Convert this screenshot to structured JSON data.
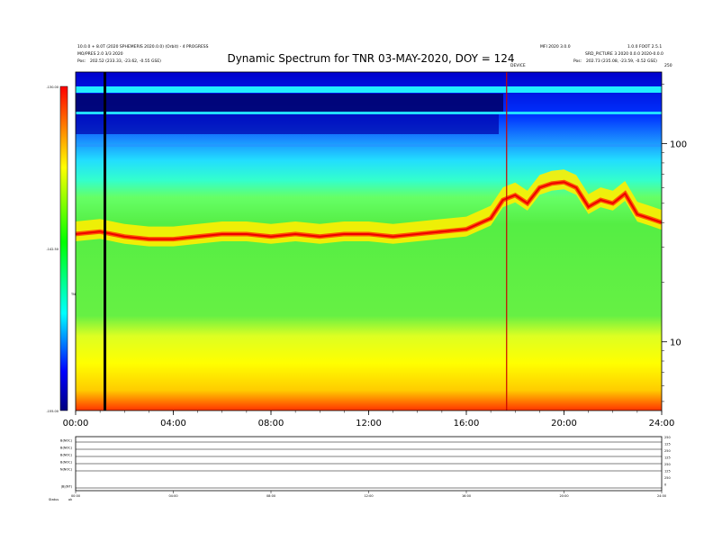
{
  "chart_data": [
    {
      "type": "heatmap",
      "title": "Dynamic Spectrum for TNR 03-MAY-2020, DOY = 124",
      "x_tick_labels": [
        "00:00",
        "04:00",
        "08:00",
        "12:00",
        "16:00",
        "20:00",
        "24:00"
      ],
      "x_ticks_hours": [
        0,
        4,
        8,
        12,
        16,
        20,
        24
      ],
      "xlim_hours": [
        0,
        24
      ],
      "y_tick_labels": [
        "100",
        "10"
      ],
      "y_ticks": [
        100,
        10
      ],
      "y_scale": "log",
      "ylim": [
        4.5,
        230
      ],
      "y_top_label": "250",
      "colorbar": {
        "tick_labels": [
          "-130.00",
          "-142.50",
          "-155.00"
        ],
        "range": [
          -155,
          -130
        ],
        "label": "TNR",
        "colors": [
          "#000080",
          "#0000ff",
          "#00ffff",
          "#00ff00",
          "#ffff00",
          "#ff0000"
        ]
      },
      "annotations": {
        "top_left_1": "10.0.0 + 8.0T (2020 SPHEMERIS 2020.0.0) (Orbit) - 4 PROGRESS",
        "top_left_2": "MO/PRES 2.0 3/3 2020",
        "pos_left_label": "Pos:",
        "pos_left_value": "202.52 (233.33, -23.62, -0.55 GSE)",
        "top_right_1": "MFI 2020 3.0.0",
        "top_right_2": "1.0.0 FOOT 2.5.1",
        "top_right_3": "SRD_PICTURE 3 2020 0.0.0 2020-0.0.0",
        "pos_right_label": "Pos:",
        "pos_right_value": "202.73 (235.08, -23.59, -0.52 GSE)",
        "event_label": "DEVICE",
        "right_top_small": "250"
      },
      "vertical_markers_hours": [
        1.2,
        17.65
      ],
      "emission_band_freq": [
        [
          0,
          35
        ],
        [
          1,
          36
        ],
        [
          2,
          34
        ],
        [
          3,
          33
        ],
        [
          4,
          33
        ],
        [
          5,
          34
        ],
        [
          6,
          35
        ],
        [
          7,
          35
        ],
        [
          8,
          34
        ],
        [
          9,
          35
        ],
        [
          10,
          34
        ],
        [
          11,
          35
        ],
        [
          12,
          35
        ],
        [
          13,
          34
        ],
        [
          14,
          35
        ],
        [
          15,
          36
        ],
        [
          16,
          37
        ],
        [
          17,
          42
        ],
        [
          17.5,
          52
        ],
        [
          18,
          55
        ],
        [
          18.5,
          50
        ],
        [
          19,
          60
        ],
        [
          19.5,
          63
        ],
        [
          20,
          64
        ],
        [
          20.5,
          60
        ],
        [
          21,
          48
        ],
        [
          21.5,
          52
        ],
        [
          22,
          50
        ],
        [
          22.5,
          56
        ],
        [
          23,
          44
        ],
        [
          23.5,
          42
        ],
        [
          24,
          40
        ]
      ]
    },
    {
      "type": "line",
      "panel": "lower-parameters",
      "row_labels": [
        "B(NOC)",
        "B(NOC)",
        "B(NOC)",
        "B(NOC)",
        "N(NOC)",
        "|B|(NT)"
      ],
      "right_labels": [
        "250",
        "125",
        "250",
        "125",
        "250",
        "125",
        "250",
        "0"
      ],
      "x_tick_labels": [
        "00:00",
        "04:00",
        "08:00",
        "12:00",
        "16:00",
        "20:00",
        "24:00"
      ],
      "footer_label": "Status",
      "footer_value": "ok"
    }
  ]
}
